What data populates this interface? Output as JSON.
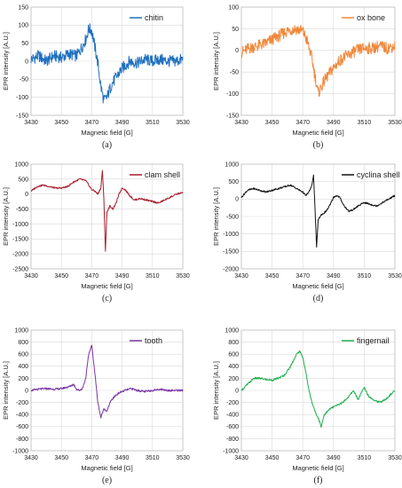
{
  "chart_data": [
    {
      "type": "line",
      "panel_label": "(a)",
      "xlabel": "Magnetic field [G]",
      "ylabel": "EPR intensity [A.U.]",
      "xlim": [
        3430,
        3530
      ],
      "ylim": [
        -150,
        150
      ],
      "x_ticks": [
        3430,
        3450,
        3470,
        3490,
        3510,
        3530
      ],
      "y_ticks": [
        -150,
        -100,
        -50,
        0,
        50,
        100,
        150
      ],
      "legend_position": "top-right",
      "series": [
        {
          "name": "chitin",
          "color": "#1f6fbf",
          "x": [
            3430,
            3435,
            3440,
            3445,
            3450,
            3455,
            3460,
            3463,
            3466,
            3468,
            3470,
            3472,
            3474,
            3476,
            3478,
            3480,
            3483,
            3486,
            3490,
            3495,
            3500,
            3505,
            3510,
            3515,
            3520,
            3525,
            3530
          ],
          "y": [
            5,
            15,
            0,
            15,
            10,
            20,
            15,
            35,
            60,
            90,
            85,
            40,
            -5,
            -70,
            -110,
            -100,
            -65,
            -45,
            -20,
            0,
            -5,
            5,
            0,
            5,
            0,
            0,
            5
          ]
        }
      ]
    },
    {
      "type": "line",
      "panel_label": "(b)",
      "xlabel": "Magnetic field [G]",
      "ylabel": "EPR intensity [A.U.]",
      "xlim": [
        3430,
        3530
      ],
      "ylim": [
        -150,
        100
      ],
      "x_ticks": [
        3430,
        3450,
        3470,
        3490,
        3510,
        3530
      ],
      "y_ticks": [
        -150,
        -100,
        -50,
        0,
        50,
        100
      ],
      "legend_position": "top-right",
      "series": [
        {
          "name": "ox bone",
          "color": "#f0873a",
          "x": [
            3430,
            3435,
            3440,
            3445,
            3450,
            3455,
            3460,
            3465,
            3470,
            3473,
            3476,
            3478,
            3480,
            3482,
            3484,
            3487,
            3490,
            3495,
            3500,
            3505,
            3510,
            3515,
            3520,
            3525,
            3530
          ],
          "y": [
            -5,
            5,
            10,
            15,
            25,
            35,
            45,
            50,
            45,
            20,
            -20,
            -60,
            -100,
            -85,
            -70,
            -55,
            -40,
            -20,
            -10,
            0,
            5,
            5,
            10,
            5,
            10
          ]
        }
      ]
    },
    {
      "type": "line",
      "panel_label": "(c)",
      "xlabel": "Magnetic field [G]",
      "ylabel": "EPR intensity [A.U.]",
      "xlim": [
        3430,
        3530
      ],
      "ylim": [
        -2500,
        1000
      ],
      "x_ticks": [
        3430,
        3450,
        3470,
        3490,
        3510,
        3530
      ],
      "y_ticks": [
        -2500,
        -2000,
        -1500,
        -1000,
        -500,
        0,
        500,
        1000
      ],
      "legend_position": "top-right",
      "series": [
        {
          "name": "clam shell",
          "color": "#a81c2b",
          "x": [
            3430,
            3434,
            3438,
            3442,
            3446,
            3450,
            3454,
            3458,
            3462,
            3466,
            3468,
            3470,
            3472,
            3474,
            3476,
            3477,
            3478,
            3479,
            3480,
            3482,
            3484,
            3486,
            3488,
            3490,
            3492,
            3495,
            3498,
            3502,
            3506,
            3510,
            3514,
            3518,
            3522,
            3526,
            3530
          ],
          "y": [
            100,
            250,
            300,
            250,
            200,
            200,
            250,
            400,
            500,
            450,
            300,
            150,
            100,
            0,
            200,
            800,
            -200,
            -1900,
            -600,
            -400,
            -500,
            -300,
            0,
            200,
            150,
            -50,
            -200,
            -150,
            -200,
            -250,
            -300,
            -200,
            -100,
            0,
            50
          ]
        }
      ]
    },
    {
      "type": "line",
      "panel_label": "(d)",
      "xlabel": "Magnetic field [G]",
      "ylabel": "EPR intensity [A.U.]",
      "xlim": [
        3430,
        3530
      ],
      "ylim": [
        -2000,
        1000
      ],
      "x_ticks": [
        3430,
        3450,
        3470,
        3490,
        3510,
        3530
      ],
      "y_ticks": [
        -2000,
        -1500,
        -1000,
        -500,
        0,
        500,
        1000
      ],
      "legend_position": "top-right",
      "series": [
        {
          "name": "cyclina shell",
          "color": "#111111",
          "x": [
            3430,
            3434,
            3438,
            3442,
            3446,
            3450,
            3454,
            3458,
            3462,
            3466,
            3470,
            3472,
            3474,
            3476,
            3477,
            3478,
            3479,
            3480,
            3482,
            3484,
            3486,
            3488,
            3490,
            3492,
            3494,
            3497,
            3500,
            3503,
            3506,
            3510,
            3514,
            3518,
            3522,
            3526,
            3530
          ],
          "y": [
            50,
            250,
            300,
            250,
            200,
            250,
            300,
            350,
            400,
            300,
            200,
            100,
            200,
            400,
            700,
            -300,
            -1400,
            -600,
            -450,
            -400,
            -300,
            -150,
            50,
            100,
            50,
            -200,
            -350,
            -300,
            -200,
            -100,
            -150,
            -200,
            -100,
            0,
            100
          ]
        }
      ]
    },
    {
      "type": "line",
      "panel_label": "(e)",
      "xlabel": "Magnetic field [G]",
      "ylabel": "EPR intensity [A.U.]",
      "xlim": [
        3430,
        3530
      ],
      "ylim": [
        -1000,
        1000
      ],
      "x_ticks": [
        3430,
        3450,
        3470,
        3490,
        3510,
        3530
      ],
      "y_ticks": [
        -1000,
        -800,
        -600,
        -400,
        -200,
        0,
        200,
        400,
        600,
        800,
        1000
      ],
      "legend_position": "top-right",
      "series": [
        {
          "name": "tooth",
          "color": "#7b35a6",
          "x": [
            3430,
            3435,
            3440,
            3445,
            3450,
            3455,
            3458,
            3460,
            3462,
            3464,
            3466,
            3468,
            3470,
            3472,
            3474,
            3476,
            3478,
            3480,
            3482,
            3485,
            3488,
            3492,
            3496,
            3500,
            3505,
            3510,
            3515,
            3520,
            3525,
            3530
          ],
          "y": [
            0,
            20,
            30,
            20,
            30,
            60,
            100,
            20,
            0,
            40,
            200,
            600,
            750,
            300,
            -200,
            -450,
            -300,
            -350,
            -200,
            -100,
            -40,
            0,
            30,
            0,
            -20,
            0,
            20,
            0,
            0,
            0
          ]
        }
      ]
    },
    {
      "type": "line",
      "panel_label": "(f)",
      "xlabel": "Magnetic field [G]",
      "ylabel": "EPR intensity [A.U.]",
      "xlim": [
        3430,
        3530
      ],
      "ylim": [
        -1000,
        1000
      ],
      "x_ticks": [
        3430,
        3450,
        3470,
        3490,
        3510,
        3530
      ],
      "y_ticks": [
        -1000,
        -800,
        -600,
        -400,
        -200,
        0,
        200,
        400,
        600,
        800,
        1000
      ],
      "legend_position": "top-right",
      "series": [
        {
          "name": "fingernail",
          "color": "#1fae4f",
          "x": [
            3430,
            3434,
            3438,
            3442,
            3446,
            3450,
            3454,
            3458,
            3462,
            3466,
            3468,
            3470,
            3472,
            3474,
            3476,
            3478,
            3480,
            3482,
            3484,
            3488,
            3492,
            3496,
            3500,
            3503,
            3506,
            3510,
            3513,
            3516,
            3520,
            3524,
            3528,
            3530
          ],
          "y": [
            0,
            100,
            200,
            200,
            180,
            170,
            200,
            250,
            400,
            600,
            650,
            550,
            300,
            0,
            -200,
            -350,
            -450,
            -600,
            -400,
            -300,
            -250,
            -200,
            -100,
            0,
            -150,
            50,
            -100,
            -150,
            -200,
            -150,
            -50,
            0
          ]
        }
      ]
    }
  ]
}
